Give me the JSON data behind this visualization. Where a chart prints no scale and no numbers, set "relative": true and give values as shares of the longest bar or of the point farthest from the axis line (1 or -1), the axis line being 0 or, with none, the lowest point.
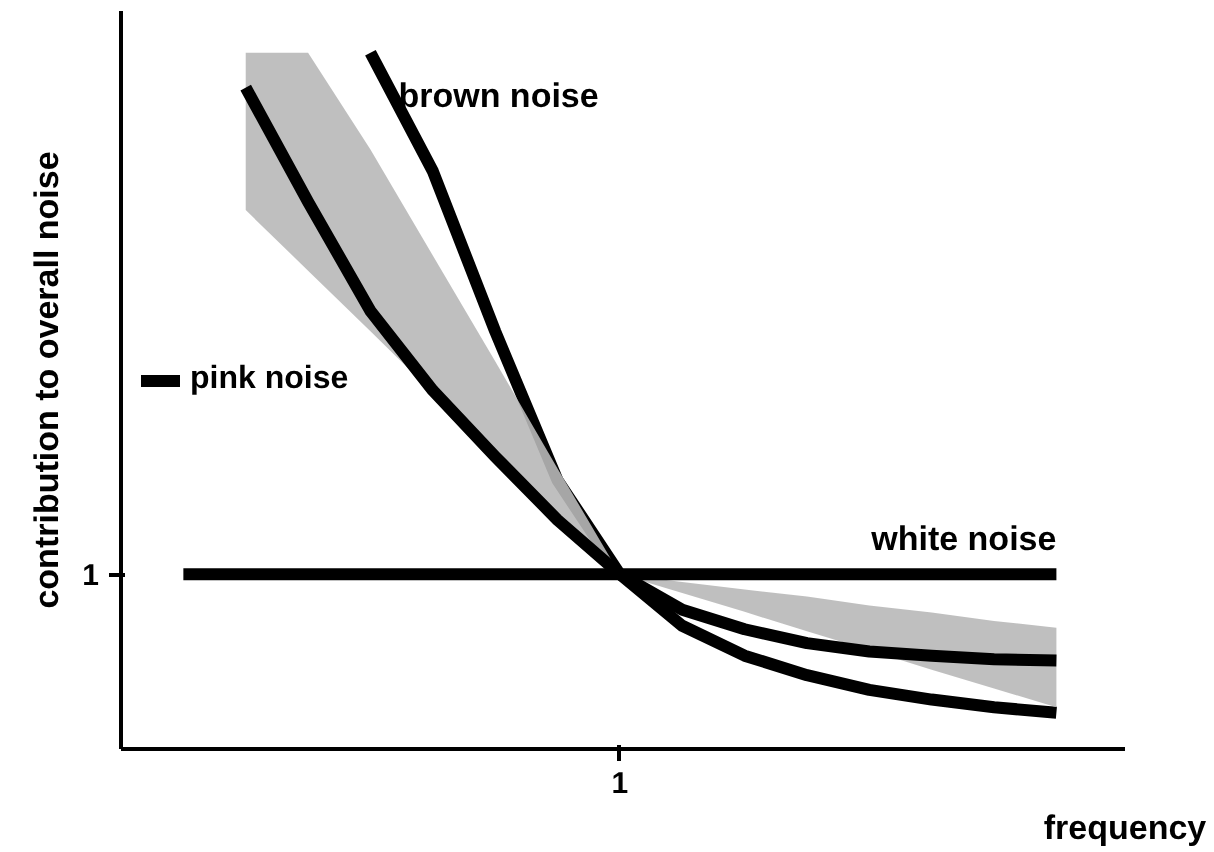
{
  "chart_data": {
    "type": "line",
    "xlabel": "frequency",
    "ylabel": "contribution to overall noise",
    "relative": true,
    "annotations": [
      "1",
      "1"
    ],
    "categories": [
      null,
      null,
      null,
      null,
      null,
      null,
      null,
      null,
      null,
      null,
      null,
      null,
      null,
      null,
      null
    ],
    "grid": false,
    "legend": "left",
    "marker": "none",
    "line_style": "solid",
    "series": [
      {
        "name": "brown noise",
        "color": "#000000",
        "values": [
          null,
          null,
          null,
          1,
          0.83,
          0.6,
          0.386,
          0.251,
          0.177,
          0.134,
          0.106,
          0.085,
          0.071,
          0.06,
          0.052
        ]
      },
      {
        "name": "pink noise",
        "color": "#000000",
        "values": [
          null,
          0.95,
          0.786,
          0.629,
          0.515,
          0.42,
          0.329,
          0.251,
          0.2,
          0.172,
          0.152,
          0.14,
          0.134,
          0.129,
          0.127
        ],
        "lower": [
          null,
          0.774,
          0.687,
          0.6,
          0.512,
          0.425,
          0.338,
          0.251,
          0.224,
          0.197,
          0.169,
          0.142,
          0.114,
          0.087,
          0.06
        ],
        "upper": [
          null,
          1,
          1,
          0.861,
          0.709,
          0.557,
          0.403,
          0.251,
          0.24,
          0.229,
          0.219,
          0.206,
          0.196,
          0.184,
          0.174
        ]
      },
      {
        "name": "white noise",
        "color": "#000000",
        "values": [
          0.251,
          0.251,
          0.251,
          0.251,
          0.251,
          0.251,
          0.251,
          0.251,
          0.251,
          0.251,
          0.251,
          0.251,
          0.251,
          0.251,
          0.251
        ]
      }
    ]
  }
}
